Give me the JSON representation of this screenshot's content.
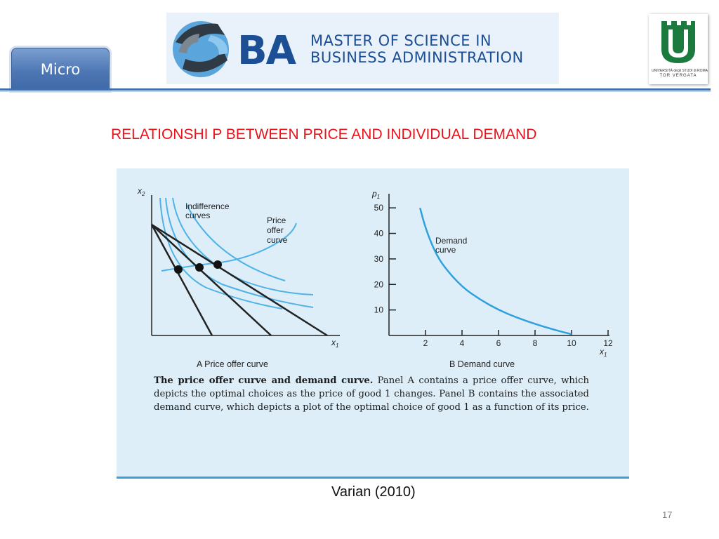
{
  "header": {
    "section_tab": "Micro",
    "logo": {
      "letters": "BA",
      "line1": "MASTER OF SCIENCE IN",
      "line2": "BUSINESS ADMINISTRATION"
    },
    "university": {
      "line1": "UNIVERSITÀ degli STUDI di ROMA",
      "line2": "TOR VERGATA"
    }
  },
  "slide": {
    "title": "RELATIONSHI P BETWEEN PRICE AND INDIVIDUAL DEMAND",
    "source": "Varian (2010)",
    "page_number": "17"
  },
  "figure": {
    "panel_a": {
      "caption": "A  Price offer curve",
      "y_axis_label": "x",
      "y_axis_sub": "2",
      "x_axis_label": "x",
      "x_axis_sub": "1",
      "label_indifference": [
        "Indifference",
        "curves"
      ],
      "label_price_offer": [
        "Price",
        "offer",
        "curve"
      ]
    },
    "panel_b": {
      "caption": "B  Demand curve",
      "y_axis_label": "p",
      "y_axis_sub": "1",
      "x_axis_label": "x",
      "x_axis_sub": "1",
      "label_demand": [
        "Demand",
        "curve"
      ]
    },
    "caption_bold": "The price offer curve and demand curve.",
    "caption_text": " Panel A contains a price offer curve, which depicts the optimal choices as the price of good 1 changes. Panel B contains the associated demand curve, which depicts a plot of the optimal choice of good 1 as a function of its price."
  },
  "chart_data": [
    {
      "type": "line",
      "panel": "A",
      "title": "Price offer curve",
      "xlabel": "x1",
      "ylabel": "x2",
      "series": []
    },
    {
      "type": "line",
      "panel": "B",
      "title": "Demand curve",
      "xlabel": "x1",
      "ylabel": "p1",
      "x_ticks": [
        "2",
        "4",
        "6",
        "8",
        "10",
        "12"
      ],
      "y_ticks": [
        "10",
        "20",
        "30",
        "40",
        "50"
      ],
      "xlim": [
        0,
        12
      ],
      "ylim": [
        0,
        55
      ],
      "series": [
        {
          "name": "Demand curve",
          "points": [
            [
              1.7,
              50
            ],
            [
              2,
              42
            ],
            [
              2.5,
              33
            ],
            [
              3,
              27
            ],
            [
              4,
              19
            ],
            [
              5,
              14
            ],
            [
              6,
              10
            ],
            [
              7,
              7
            ],
            [
              8,
              4.5
            ],
            [
              9,
              2.3
            ],
            [
              10,
              0.5
            ]
          ]
        }
      ]
    }
  ]
}
